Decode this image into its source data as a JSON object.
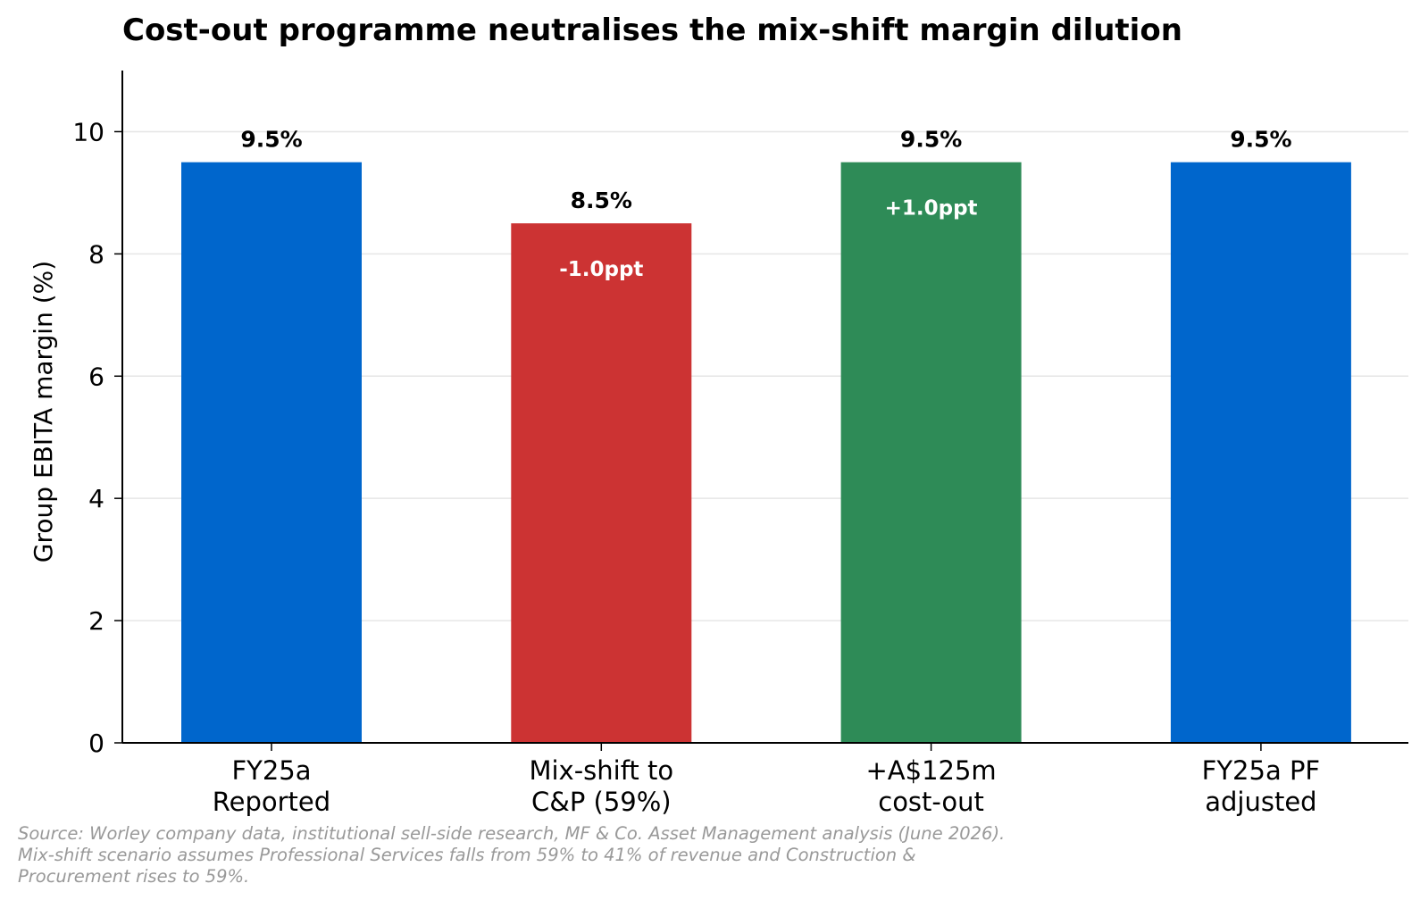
{
  "chart_data": {
    "type": "bar",
    "title": "Cost-out programme neutralises the mix-shift margin dilution",
    "ylabel": "Group EBITA margin (%)",
    "xlabel": "",
    "ylim": [
      0,
      11
    ],
    "yticks": [
      0,
      2,
      4,
      6,
      8,
      10
    ],
    "grid": "horizontal",
    "categories": [
      [
        "FY25a",
        "Reported"
      ],
      [
        "Mix-shift to",
        "C&P (59%)"
      ],
      [
        "+A$125m",
        "cost-out"
      ],
      [
        "FY25a PF",
        "adjusted"
      ]
    ],
    "values": [
      9.5,
      8.5,
      9.5,
      9.5
    ],
    "value_labels": [
      "9.5%",
      "8.5%",
      "9.5%",
      "9.5%"
    ],
    "delta_labels": [
      "",
      "-1.0ppt",
      "+1.0ppt",
      ""
    ],
    "colors": [
      "#0066cc",
      "#cc3333",
      "#2e8b57",
      "#0066cc"
    ]
  },
  "footnote": {
    "lines": [
      "Source: Worley company data, institutional sell-side research, MF & Co. Asset Management analysis (June 2026).",
      "Mix-shift scenario assumes Professional Services falls from 59% to 41% of revenue and Construction &",
      "Procurement rises to 59%."
    ]
  }
}
